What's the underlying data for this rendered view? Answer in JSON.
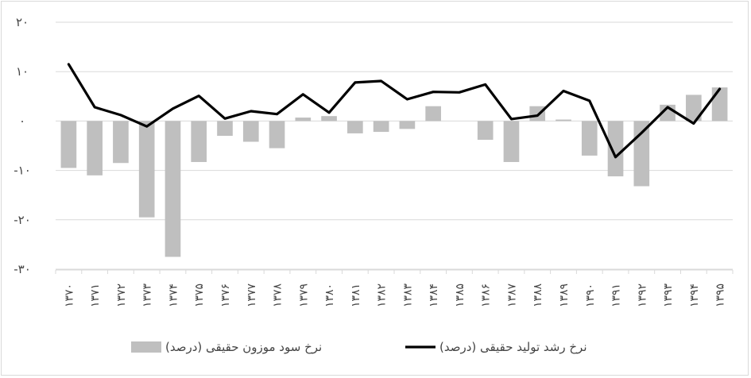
{
  "chart_data": {
    "type": "bar",
    "title": "",
    "xlabel": "",
    "ylabel": "",
    "categories": [
      "۱۳۷۰",
      "۱۳۷۱",
      "۱۳۷۲",
      "۱۳۷۳",
      "۱۳۷۴",
      "۱۳۷۵",
      "۱۳۷۶",
      "۱۳۷۷",
      "۱۳۷۸",
      "۱۳۷۹",
      "۱۳۸۰",
      "۱۳۸۱",
      "۱۳۸۲",
      "۱۳۸۳",
      "۱۳۸۴",
      "۱۳۸۵",
      "۱۳۸۶",
      "۱۳۸۷",
      "۱۳۸۸",
      "۱۳۸۹",
      "۱۳۹۰",
      "۱۳۹۱",
      "۱۳۹۲",
      "۱۳۹۳",
      "۱۳۹۴",
      "۱۳۹۵"
    ],
    "ylim": [
      -30,
      20
    ],
    "yticks": [
      20,
      10,
      0,
      -10,
      -20,
      -30
    ],
    "ytick_labels": [
      "۲۰",
      "۱۰",
      "۰",
      "-۱۰",
      "-۲۰",
      "-۳۰"
    ],
    "grid": true,
    "legend_position": "bottom",
    "series": [
      {
        "name": "نرخ سود موزون حقیقی (درصد)",
        "type": "bar",
        "color": "#bfbfbf",
        "values": [
          -9.5,
          -11,
          -8.5,
          -19.5,
          -27.5,
          -8.3,
          -3,
          -4.2,
          -5.5,
          0.7,
          1,
          -2.5,
          -2.2,
          -1.6,
          3,
          0,
          -3.8,
          -8.3,
          3,
          0.3,
          -7,
          -11.2,
          -13.2,
          3.3,
          5.3,
          6.8
        ]
      },
      {
        "name": "نرخ رشد تولید حقیقی (درصد)",
        "type": "line",
        "color": "#000000",
        "values": [
          11.5,
          2.8,
          1.2,
          -1.1,
          2.5,
          5.1,
          0.5,
          2,
          1.4,
          5.4,
          1.7,
          7.8,
          8.1,
          4.4,
          5.9,
          5.8,
          7.4,
          0.4,
          1.1,
          6.1,
          4.1,
          -7.3,
          -2.4,
          2.8,
          -0.5,
          6.5
        ]
      }
    ]
  }
}
